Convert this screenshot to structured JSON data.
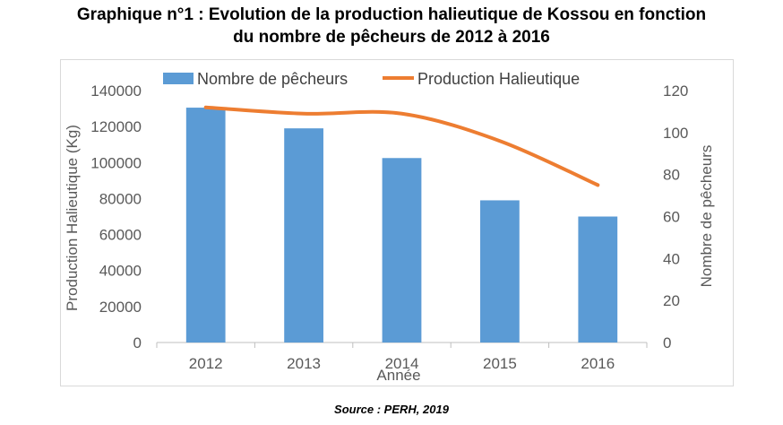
{
  "title_line1": "Graphique n°1 : Evolution de la production halieutique de Kossou en fonction",
  "title_line2": "du nombre de pêcheurs de 2012 à 2016",
  "source": "Source : PERH, 2019",
  "chart_data": {
    "type": "bar+line",
    "categories": [
      "2012",
      "2013",
      "2014",
      "2015",
      "2016"
    ],
    "xlabel": "Année",
    "ylabel_left": "Production Halieutique (Kg)",
    "ylabel_right": "Nombre de pêcheurs",
    "ylim_left": [
      0,
      140000
    ],
    "ylim_right": [
      0,
      120
    ],
    "yticks_left": [
      "0",
      "20000",
      "40000",
      "60000",
      "80000",
      "100000",
      "120000",
      "140000"
    ],
    "yticks_right": [
      "0",
      "20",
      "40",
      "60",
      "80",
      "100",
      "120"
    ],
    "legend_position": "top",
    "series": [
      {
        "name": "Nombre de pêcheurs",
        "type": "bar",
        "axis": "left",
        "color": "#5b9bd5",
        "values": [
          130500,
          119000,
          102500,
          79000,
          70000
        ]
      },
      {
        "name": "Production Halieutique",
        "type": "line",
        "axis": "right",
        "color": "#ed7d31",
        "values": [
          112,
          109,
          109,
          96,
          75
        ]
      }
    ]
  }
}
